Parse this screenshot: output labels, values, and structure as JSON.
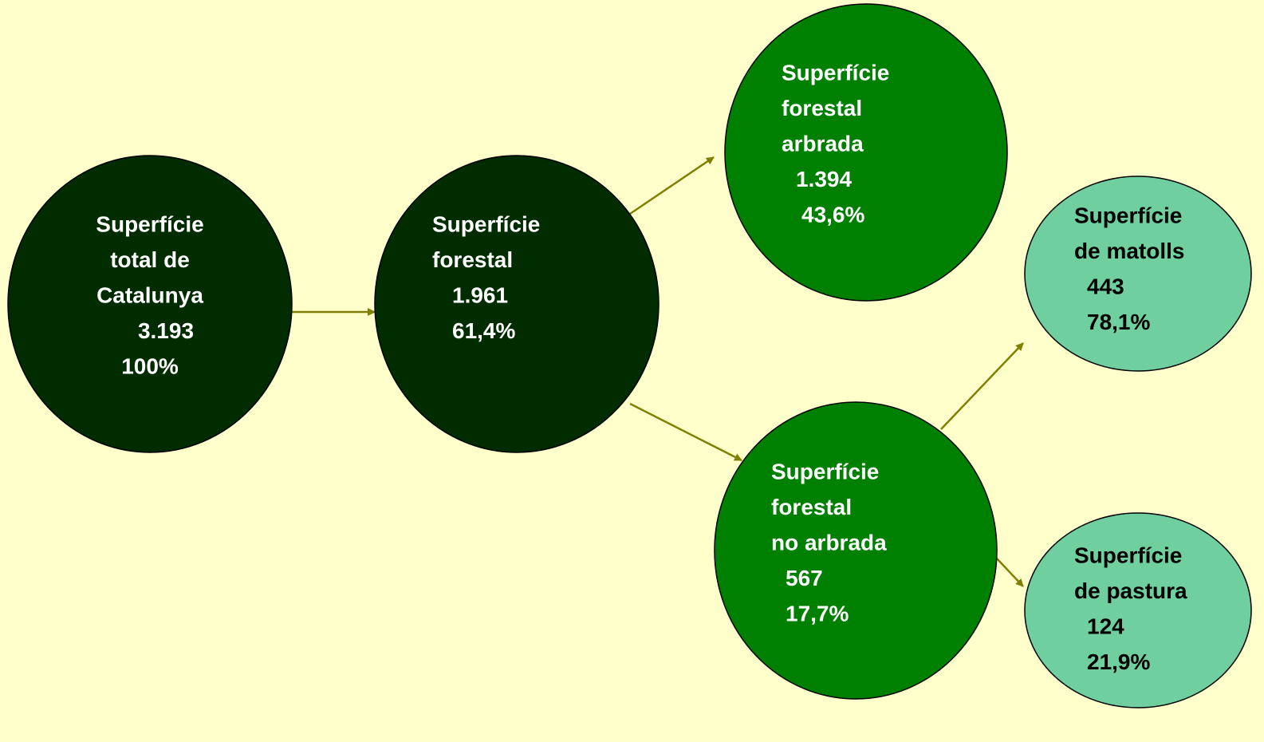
{
  "nodes": [
    {
      "label": [
        "Superfície",
        "total de",
        "Catalunya"
      ],
      "value": "3.193",
      "percent": "100%"
    },
    {
      "label": [
        "Superfície",
        "forestal"
      ],
      "value": "1.961",
      "percent": "61,4%"
    },
    {
      "label": [
        "Superfície",
        "forestal",
        "arbrada"
      ],
      "value": "1.394",
      "percent": "43,6%"
    },
    {
      "label": [
        "Superfície",
        "forestal",
        "no arbrada"
      ],
      "value": "567",
      "percent": "17,7%"
    },
    {
      "label": [
        "Superfície",
        "de matolls"
      ],
      "value": "443",
      "percent": "78,1%"
    },
    {
      "label": [
        "Superfície",
        "de pastura"
      ],
      "value": "124",
      "percent": "21,9%"
    }
  ]
}
